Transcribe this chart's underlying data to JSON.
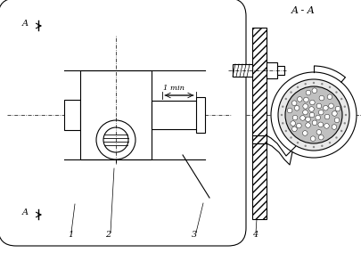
{
  "bg_color": "#ffffff",
  "line_color": "#000000",
  "fig_width": 4.06,
  "fig_height": 2.84,
  "title": "A - A",
  "dim_label": "1 min"
}
